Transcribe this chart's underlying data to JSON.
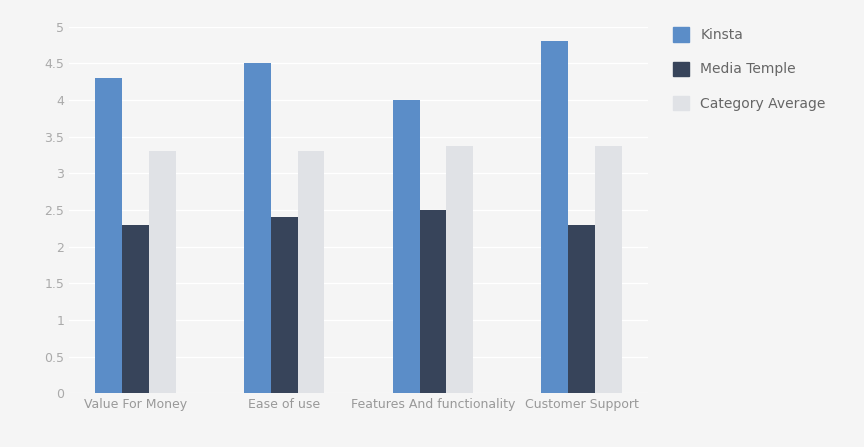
{
  "categories": [
    "Value For Money",
    "Ease of use",
    "Features And functionality",
    "Customer Support"
  ],
  "series": [
    {
      "label": "Kinsta",
      "color": "#5b8dc8",
      "values": [
        4.3,
        4.5,
        4.0,
        4.8
      ]
    },
    {
      "label": "Media Temple",
      "color": "#37445a",
      "values": [
        2.3,
        2.4,
        2.5,
        2.3
      ]
    },
    {
      "label": "Category Average",
      "color": "#e0e2e6",
      "values": [
        3.3,
        3.3,
        3.38,
        3.38
      ]
    }
  ],
  "ylim": [
    0,
    5
  ],
  "yticks": [
    0,
    0.5,
    1.0,
    1.5,
    2.0,
    2.5,
    3.0,
    3.5,
    4.0,
    4.5,
    5.0
  ],
  "plot_bg_color": "#f5f5f5",
  "legend_bg_color": "#ffffff",
  "grid_color": "#ffffff",
  "bar_width": 0.18,
  "legend_fontsize": 10,
  "tick_fontsize": 9,
  "tick_color": "#aaaaaa",
  "label_color": "#999999"
}
